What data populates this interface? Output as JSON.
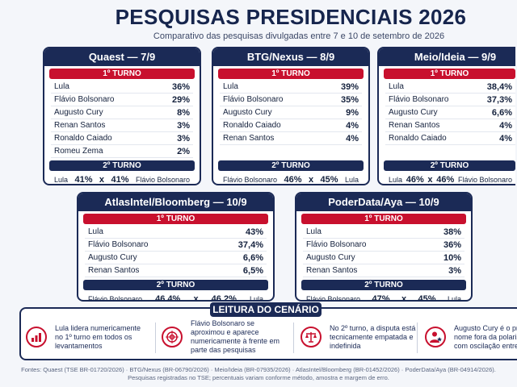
{
  "header": {
    "title": "PESQUISAS PRESIDENCIAIS 2026",
    "subtitle": "Comparativo das pesquisas divulgadas entre 7 e 10 de setembro de 2026"
  },
  "labels": {
    "first_turn": "1º TURNO",
    "second_turn": "2º TURNO",
    "x": "x"
  },
  "polls": [
    {
      "name": "Quaest — 7/9",
      "first": [
        {
          "name": "Lula",
          "val": "36%"
        },
        {
          "name": "Flávio Bolsonaro",
          "val": "29%"
        },
        {
          "name": "Augusto Cury",
          "val": "8%"
        },
        {
          "name": "Renan Santos",
          "val": "3%"
        },
        {
          "name": "Ronaldo Caiado",
          "val": "3%"
        },
        {
          "name": "Romeu Zema",
          "val": "2%"
        }
      ],
      "second": {
        "left": "Lula",
        "left_val": "41%",
        "right_val": "41%",
        "right": "Flávio Bolsonaro"
      }
    },
    {
      "name": "BTG/Nexus — 8/9",
      "first": [
        {
          "name": "Lula",
          "val": "39%"
        },
        {
          "name": "Flávio Bolsonaro",
          "val": "35%"
        },
        {
          "name": "Augusto Cury",
          "val": "9%"
        },
        {
          "name": "Ronaldo Caiado",
          "val": "4%"
        },
        {
          "name": "Renan Santos",
          "val": "4%"
        }
      ],
      "second": {
        "left": "Flávio Bolsonaro",
        "left_val": "46%",
        "right_val": "45%",
        "right": "Lula"
      }
    },
    {
      "name": "Meio/Ideia — 9/9",
      "first": [
        {
          "name": "Lula",
          "val": "38,4%"
        },
        {
          "name": "Flávio Bolsonaro",
          "val": "37,3%"
        },
        {
          "name": "Augusto Cury",
          "val": "6,6%"
        },
        {
          "name": "Renan Santos",
          "val": "4%"
        },
        {
          "name": "Ronaldo Caiado",
          "val": "4%"
        }
      ],
      "second": {
        "left": "Lula",
        "left_val": "46%",
        "right_val": "46%",
        "right": "Flávio Bolsonaro"
      }
    },
    {
      "name": "AtlasIntel/Bloomberg — 10/9",
      "first": [
        {
          "name": "Lula",
          "val": "43%"
        },
        {
          "name": "Flávio Bolsonaro",
          "val": "37,4%"
        },
        {
          "name": "Augusto Cury",
          "val": "6,6%"
        },
        {
          "name": "Renan Santos",
          "val": "6,5%"
        }
      ],
      "second": {
        "left": "Flávio Bolsonaro",
        "left_val": "46,4%",
        "right_val": "46,2%",
        "right": "Lula"
      }
    },
    {
      "name": "PoderData/Aya — 10/9",
      "first": [
        {
          "name": "Lula",
          "val": "38%"
        },
        {
          "name": "Flávio Bolsonaro",
          "val": "36%"
        },
        {
          "name": "Augusto Cury",
          "val": "10%"
        },
        {
          "name": "Renan Santos",
          "val": "3%"
        }
      ],
      "second": {
        "left": "Flávio Bolsonaro",
        "left_val": "47%",
        "right_val": "45%",
        "right": "Lula"
      }
    }
  ],
  "scenario": {
    "title": "LEITURA DO CENÁRIO",
    "items": [
      {
        "icon": "bar-chart-icon",
        "text": "Lula lidera numericamente no 1º turno em todos os levantamentos"
      },
      {
        "icon": "target-icon",
        "text": "Flávio Bolsonaro se aproximou e aparece numericamente à frente em parte das pesquisas"
      },
      {
        "icon": "scales-icon",
        "text": "No 2º turno, a disputa está tecnicamente empatada e indefinida"
      },
      {
        "icon": "person-star-icon",
        "text": "Augusto Cury é o principal nome fora da polarização, com oscilação entre"
      }
    ]
  },
  "footer": {
    "line1": "Fontes: Quaest (TSE BR-01720/2026) · BTG/Nexus (BR-06790/2026) · Meio/Ideia (BR-07935/2026) · AtlasIntel/Bloomberg (BR-01452/2026) · PoderData/Aya (BR-04914/2026).",
    "line2": "Pesquisas registradas no TSE; percentuais variam conforme método, amostra e margem de erro."
  }
}
